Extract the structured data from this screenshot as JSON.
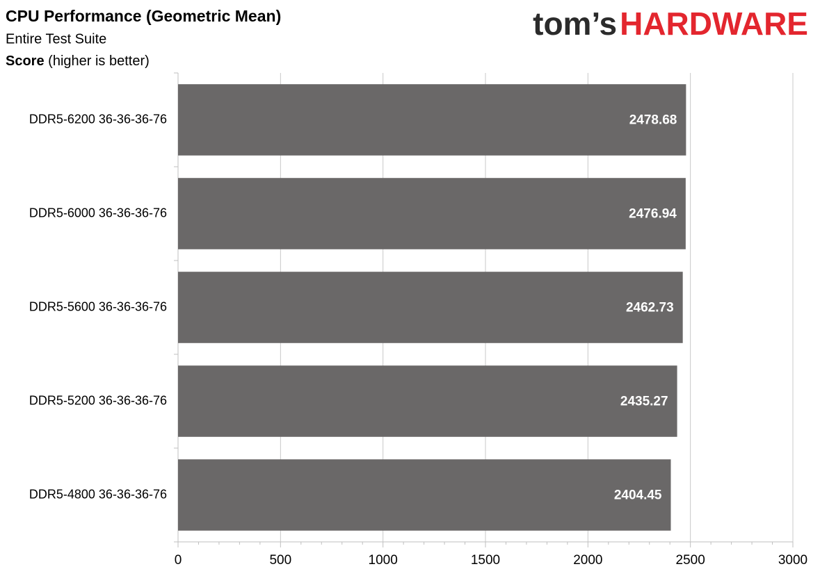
{
  "chart_data": {
    "type": "barh",
    "title": "CPU Performance (Geometric Mean)",
    "subtitle": "Entire Test Suite",
    "axis_label": "Score",
    "axis_label_note": "(higher is better)",
    "brand": {
      "prefix": "tom’s",
      "name": "HARDWARE"
    },
    "categories": [
      "DDR5-6200 36-36-36-76",
      "DDR5-6000 36-36-36-76",
      "DDR5-5600 36-36-36-76",
      "DDR5-5200 36-36-36-76",
      "DDR5-4800 36-36-36-76"
    ],
    "values": [
      2478.68,
      2476.94,
      2462.73,
      2435.27,
      2404.45
    ],
    "color": "#6a6868",
    "xlim": [
      0,
      3000
    ],
    "xticks": [
      0,
      500,
      1000,
      1500,
      2000,
      2500,
      3000
    ],
    "xminorticks": [
      100,
      200,
      300,
      400,
      600,
      700,
      800,
      900,
      1100,
      1200,
      1300,
      1400,
      1600,
      1700,
      1800,
      1900,
      2100,
      2200,
      2300,
      2400,
      2600,
      2700,
      2800,
      2900
    ],
    "grid": true
  }
}
